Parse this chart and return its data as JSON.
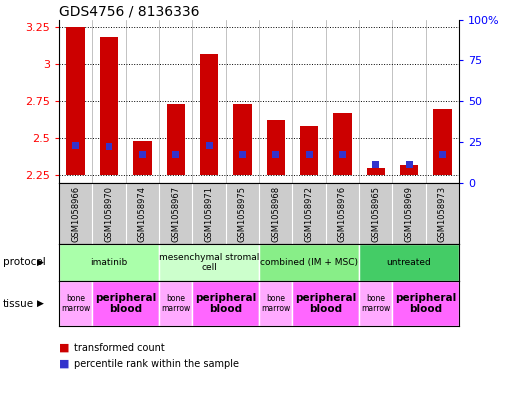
{
  "title": "GDS4756 / 8136336",
  "samples": [
    "GSM1058966",
    "GSM1058970",
    "GSM1058974",
    "GSM1058967",
    "GSM1058971",
    "GSM1058975",
    "GSM1058968",
    "GSM1058972",
    "GSM1058976",
    "GSM1058965",
    "GSM1058969",
    "GSM1058973"
  ],
  "red_values": [
    3.25,
    3.18,
    2.48,
    2.73,
    3.07,
    2.73,
    2.62,
    2.58,
    2.67,
    2.3,
    2.32,
    2.7
  ],
  "blue_positions": [
    2.43,
    2.42,
    2.37,
    2.37,
    2.43,
    2.37,
    2.37,
    2.37,
    2.37,
    2.3,
    2.3,
    2.37
  ],
  "baseline": 2.25,
  "ylim_left": [
    2.2,
    3.3
  ],
  "ylim_right": [
    0,
    100
  ],
  "yticks_left": [
    2.25,
    2.5,
    2.75,
    3.0,
    3.25
  ],
  "yticks_right": [
    0,
    25,
    50,
    75,
    100
  ],
  "ytick_labels_left": [
    "2.25",
    "2.5",
    "2.75",
    "3",
    "3.25"
  ],
  "ytick_labels_right": [
    "0",
    "25",
    "50",
    "75",
    "100%"
  ],
  "bar_width": 0.55,
  "protocols": [
    {
      "label": "imatinib",
      "start": 0,
      "end": 3,
      "color": "#aaffaa"
    },
    {
      "label": "mesenchymal stromal\ncell",
      "start": 3,
      "end": 6,
      "color": "#ccffcc"
    },
    {
      "label": "combined (IM + MSC)",
      "start": 6,
      "end": 9,
      "color": "#88ee88"
    },
    {
      "label": "untreated",
      "start": 9,
      "end": 12,
      "color": "#44cc66"
    }
  ],
  "tissues": [
    {
      "label": "bone\nmarrow",
      "start": 0,
      "end": 1,
      "color": "#ffaaff",
      "bold": false
    },
    {
      "label": "peripheral\nblood",
      "start": 1,
      "end": 3,
      "color": "#ff66ff",
      "bold": true
    },
    {
      "label": "bone\nmarrow",
      "start": 3,
      "end": 4,
      "color": "#ffaaff",
      "bold": false
    },
    {
      "label": "peripheral\nblood",
      "start": 4,
      "end": 6,
      "color": "#ff66ff",
      "bold": true
    },
    {
      "label": "bone\nmarrow",
      "start": 6,
      "end": 7,
      "color": "#ffaaff",
      "bold": false
    },
    {
      "label": "peripheral\nblood",
      "start": 7,
      "end": 9,
      "color": "#ff66ff",
      "bold": true
    },
    {
      "label": "bone\nmarrow",
      "start": 9,
      "end": 10,
      "color": "#ffaaff",
      "bold": false
    },
    {
      "label": "peripheral\nblood",
      "start": 10,
      "end": 12,
      "color": "#ff66ff",
      "bold": true
    }
  ],
  "legend_red": "transformed count",
  "legend_blue": "percentile rank within the sample",
  "protocol_label": "protocol",
  "tissue_label": "tissue",
  "bar_color_red": "#cc0000",
  "bar_color_blue": "#3333cc",
  "sample_bg_color": "#cccccc"
}
